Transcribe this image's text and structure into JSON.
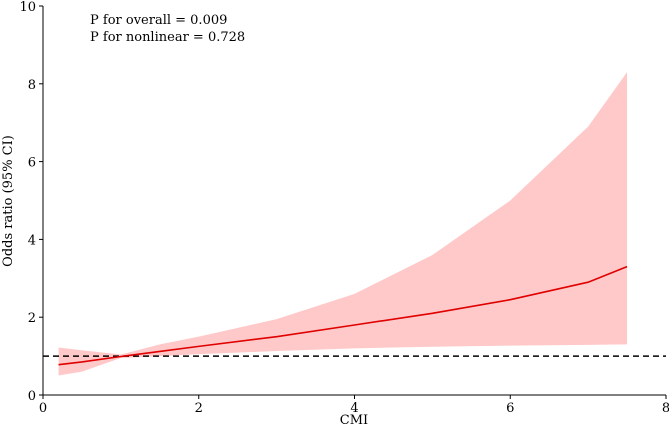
{
  "chart_data": {
    "type": "spline",
    "xlabel": "CMI",
    "ylabel": "Odds ratio (95% CI)",
    "annotations": [
      "P for overall = 0.009",
      "P for nonlinear = 0.728"
    ],
    "x": [
      0.2,
      0.5,
      1,
      1.5,
      2,
      3,
      4,
      5,
      6,
      7,
      7.5
    ],
    "values": [
      0.78,
      0.85,
      0.99,
      1.12,
      1.25,
      1.5,
      1.8,
      2.1,
      2.45,
      2.9,
      3.3
    ],
    "upper": [
      1.22,
      1.15,
      1.04,
      1.3,
      1.5,
      1.95,
      2.6,
      3.6,
      5.0,
      6.9,
      8.3
    ],
    "lower": [
      0.5,
      0.6,
      0.95,
      1.0,
      1.05,
      1.13,
      1.2,
      1.24,
      1.27,
      1.29,
      1.3
    ],
    "color": "#e00000",
    "band_color": "#ffc9c9",
    "reference_line": 1,
    "xlim": [
      0,
      8
    ],
    "xticks": [
      0,
      2,
      4,
      6,
      8
    ],
    "ylim": [
      0,
      10
    ],
    "yticks": [
      0,
      2,
      4,
      6,
      8,
      10
    ]
  }
}
